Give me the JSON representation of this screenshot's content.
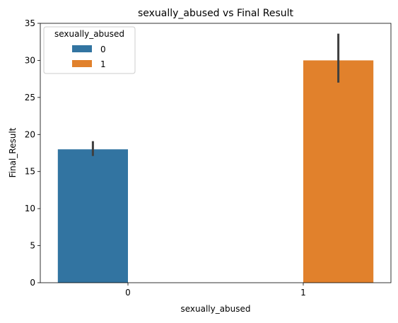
{
  "chart_data": {
    "type": "bar",
    "title": "sexually_abused vs Final Result",
    "xlabel": "sexually_abused",
    "ylabel": "Final_Result",
    "categories": [
      "0",
      "1"
    ],
    "ylim": [
      0,
      35
    ],
    "yticks": [
      "0",
      "5",
      "10",
      "15",
      "20",
      "25",
      "30",
      "35"
    ],
    "grid": false,
    "legend": {
      "title": "sexually_abused",
      "placement": "top-left"
    },
    "series": [
      {
        "name": "0",
        "color": "#3274a1",
        "values": [
          18,
          null
        ],
        "error_low": [
          17.1,
          null
        ],
        "error_high": [
          19.1,
          null
        ]
      },
      {
        "name": "1",
        "color": "#e1812c",
        "values": [
          null,
          30
        ],
        "error_low": [
          null,
          27.0
        ],
        "error_high": [
          null,
          33.6
        ]
      }
    ],
    "errorbar_color": "#3f3f3f"
  }
}
